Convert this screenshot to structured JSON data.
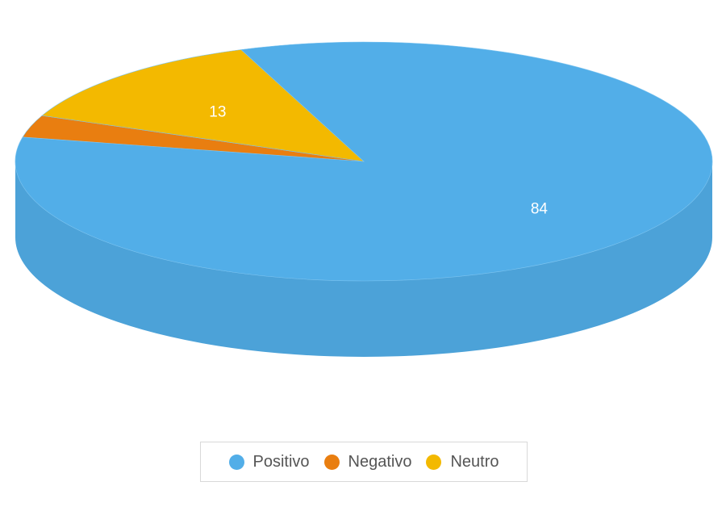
{
  "chart_data": {
    "type": "pie",
    "style": "3d",
    "categories": [
      "Positivo",
      "Negativo",
      "Neutro"
    ],
    "values": [
      84,
      3,
      13
    ],
    "data_labels": [
      "84",
      "",
      "13"
    ],
    "colors": [
      "#52aee8",
      "#e97e10",
      "#f3b900"
    ],
    "legend": {
      "position": "bottom",
      "items": [
        {
          "label": "Positivo",
          "color": "#52aee8"
        },
        {
          "label": "Negativo",
          "color": "#e97e10"
        },
        {
          "label": "Neutro",
          "color": "#f3b900"
        }
      ]
    }
  }
}
